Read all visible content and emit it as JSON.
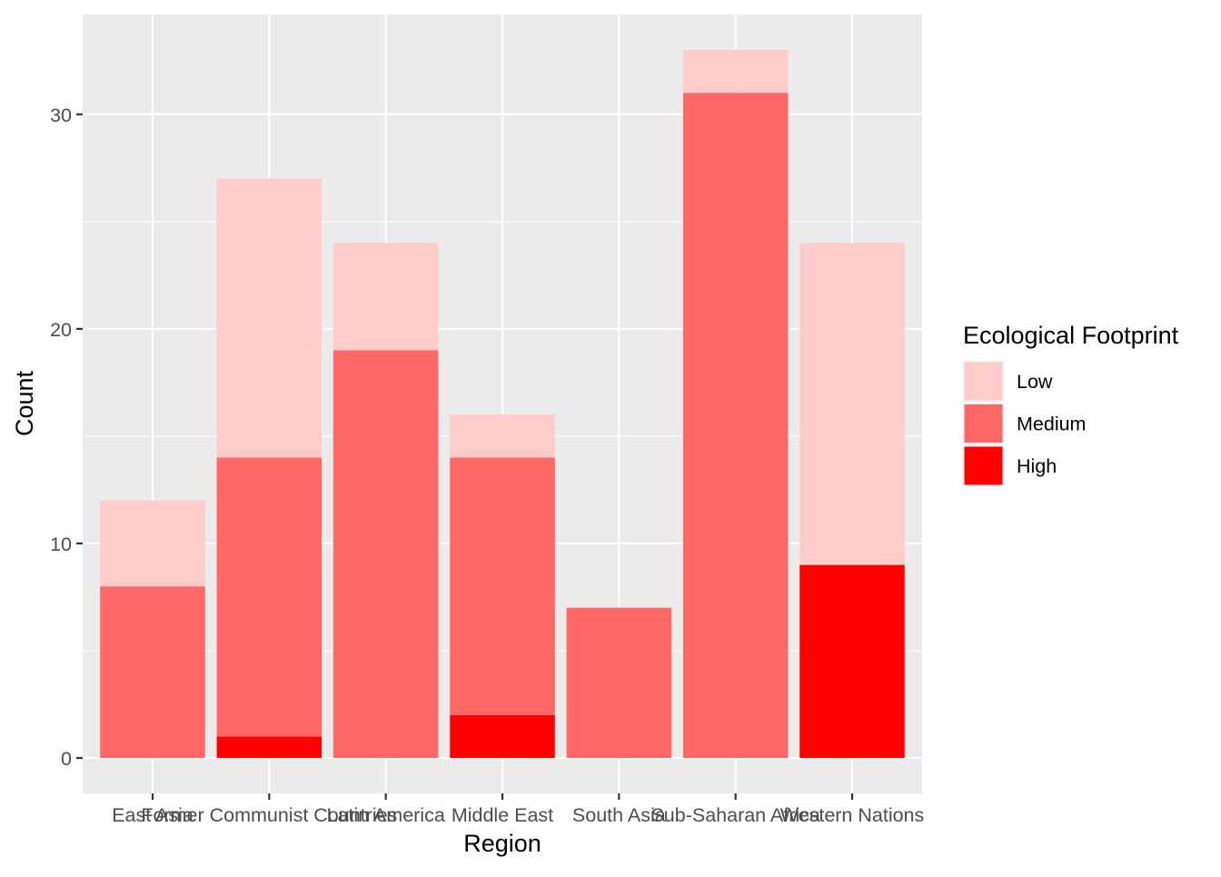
{
  "chart_data": {
    "type": "bar",
    "stacked": true,
    "title": "",
    "xlabel": "Region",
    "ylabel": "Count",
    "categories": [
      "East Asia",
      "Former Communist Countries",
      "Latin America",
      "Middle East",
      "South Asia",
      "Sub-Saharan Africa",
      "Western Nations"
    ],
    "series": [
      {
        "name": "High",
        "values": [
          0,
          1,
          0,
          2,
          0,
          0,
          9
        ],
        "color": "#FF0000"
      },
      {
        "name": "Medium",
        "values": [
          8,
          13,
          19,
          12,
          7,
          31,
          0
        ],
        "color": "#FF6666"
      },
      {
        "name": "Low",
        "values": [
          4,
          13,
          5,
          2,
          0,
          2,
          15
        ],
        "color": "#FFCCCC"
      }
    ],
    "ylim": [
      -1.65,
      34.65
    ],
    "yticks": [
      0,
      10,
      20,
      30
    ],
    "ytick_labels": [
      "0",
      "10",
      "20",
      "30"
    ],
    "grid": true,
    "legend": {
      "title": "Ecological Footprint",
      "placement": "right",
      "order": [
        "Low",
        "Medium",
        "High"
      ]
    },
    "colors": {
      "panel_background": "#EBEBEB",
      "grid": "#FFFFFF",
      "tick_text": "#4D4D4D",
      "axis_title": "#000000"
    }
  }
}
